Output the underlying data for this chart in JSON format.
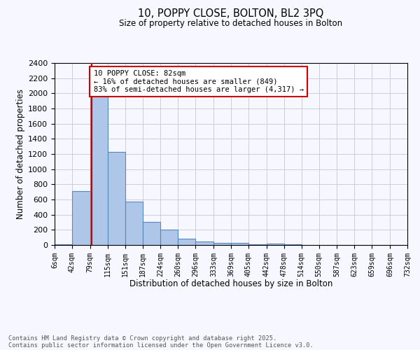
{
  "title": "10, POPPY CLOSE, BOLTON, BL2 3PQ",
  "subtitle": "Size of property relative to detached houses in Bolton",
  "xlabel": "Distribution of detached houses by size in Bolton",
  "ylabel": "Number of detached properties",
  "bin_edges": [
    6,
    42,
    79,
    115,
    151,
    187,
    224,
    260,
    296,
    333,
    369,
    405,
    442,
    478,
    514,
    550,
    587,
    623,
    659,
    696,
    732
  ],
  "bar_heights": [
    10,
    710,
    1970,
    1230,
    575,
    305,
    200,
    80,
    45,
    30,
    28,
    10,
    15,
    5,
    0,
    0,
    0,
    0,
    0,
    0
  ],
  "bar_color": "#aec6e8",
  "bar_edge_color": "#5588bb",
  "property_line_x": 82,
  "ylim": [
    0,
    2400
  ],
  "yticks": [
    0,
    200,
    400,
    600,
    800,
    1000,
    1200,
    1400,
    1600,
    1800,
    2000,
    2200,
    2400
  ],
  "annotation_title": "10 POPPY CLOSE: 82sqm",
  "annotation_line1": "← 16% of detached houses are smaller (849)",
  "annotation_line2": "83% of semi-detached houses are larger (4,317) →",
  "annotation_box_color": "#ffffff",
  "annotation_box_edge_color": "#cc0000",
  "red_line_color": "#cc0000",
  "footer_line1": "Contains HM Land Registry data © Crown copyright and database right 2025.",
  "footer_line2": "Contains public sector information licensed under the Open Government Licence v3.0.",
  "background_color": "#f7f7ff",
  "grid_color": "#ccccdd"
}
